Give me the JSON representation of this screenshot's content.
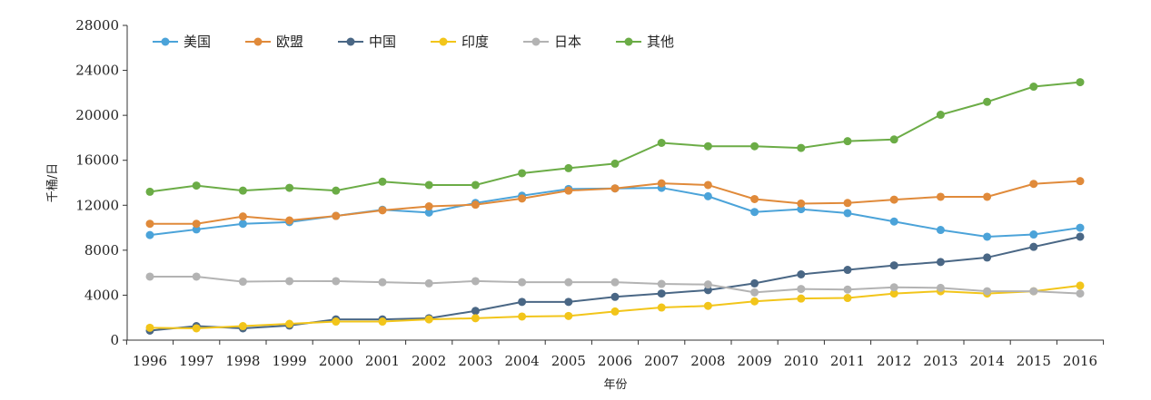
{
  "chart_data": {
    "type": "line",
    "xlabel": "年份",
    "ylabel": "千桶/日",
    "ylim": [
      0,
      28000
    ],
    "yticks": [
      0,
      4000,
      8000,
      12000,
      16000,
      20000,
      24000,
      28000
    ],
    "x": [
      "1996",
      "1997",
      "1998",
      "1999",
      "2000",
      "2001",
      "2002",
      "2003",
      "2004",
      "2005",
      "2006",
      "2007",
      "2008",
      "2009",
      "2010",
      "2011",
      "2012",
      "2013",
      "2014",
      "2015",
      "2016"
    ],
    "grid": false,
    "legend_position": "top-left",
    "series": [
      {
        "name": "美国",
        "color": "#4ba3d9",
        "values": [
          9350,
          9850,
          10350,
          10500,
          11050,
          11600,
          11350,
          12200,
          12850,
          13450,
          13500,
          13550,
          12800,
          11400,
          11650,
          11300,
          10550,
          9800,
          9200,
          9400,
          10000
        ]
      },
      {
        "name": "欧盟",
        "color": "#e08a3a",
        "values": [
          10350,
          10350,
          11000,
          10650,
          11050,
          11550,
          11900,
          12050,
          12600,
          13300,
          13500,
          13950,
          13800,
          12550,
          12150,
          12200,
          12500,
          12750,
          12750,
          13900,
          14150
        ]
      },
      {
        "name": "中国",
        "color": "#4a6785",
        "values": [
          850,
          1250,
          1050,
          1300,
          1850,
          1850,
          1950,
          2600,
          3400,
          3400,
          3850,
          4150,
          4450,
          5050,
          5850,
          6250,
          6650,
          6950,
          7350,
          8300,
          9200
        ]
      },
      {
        "name": "印度",
        "color": "#f2c51a",
        "values": [
          1100,
          1050,
          1250,
          1450,
          1650,
          1650,
          1850,
          1950,
          2100,
          2150,
          2550,
          2900,
          3050,
          3450,
          3700,
          3750,
          4150,
          4350,
          4150,
          4350,
          4850
        ]
      },
      {
        "name": "日本",
        "color": "#b3b3b3",
        "values": [
          5650,
          5650,
          5200,
          5250,
          5250,
          5150,
          5050,
          5250,
          5150,
          5150,
          5150,
          5000,
          4950,
          4250,
          4550,
          4500,
          4700,
          4650,
          4350,
          4350,
          4150
        ]
      },
      {
        "name": "其他",
        "color": "#6bac46",
        "values": [
          13200,
          13750,
          13300,
          13550,
          13300,
          14100,
          13800,
          13800,
          14850,
          15300,
          15700,
          17550,
          17250,
          17250,
          17100,
          17700,
          17850,
          20050,
          21200,
          22550,
          22950
        ]
      }
    ]
  }
}
